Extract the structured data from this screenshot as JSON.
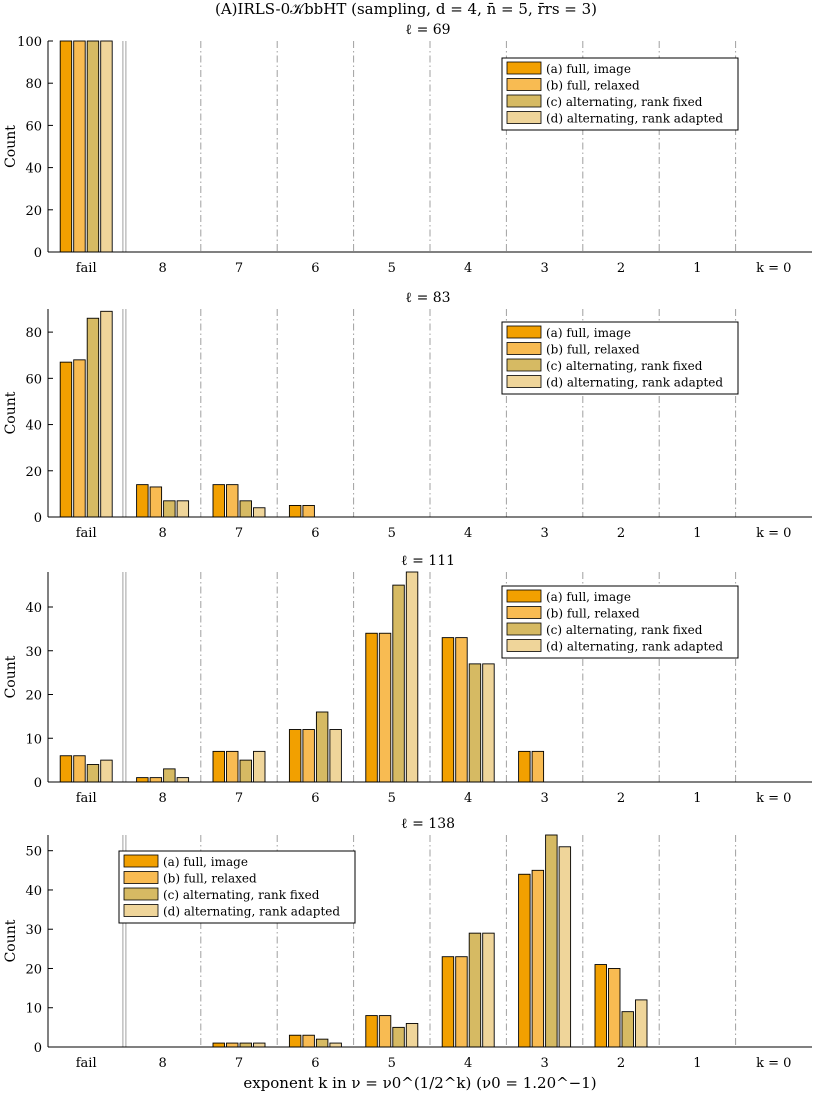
{
  "figure": {
    "title": "(A)IRLS-0𝒦bbHT (sampling, d = 4, n̄ = 5, r̄rs = 3)",
    "xlabel": "exponent k in ν = ν0^(1/2^k) (ν0 = 1.20^−1)"
  },
  "colors": {
    "a": "#F2A000",
    "b": "#F8BB52",
    "c": "#D6BA63",
    "d": "#EFD59A",
    "edge": "#000000",
    "grid": "#A0A0A0"
  },
  "chart_data": [
    {
      "type": "bar",
      "title": "ℓ = 69",
      "ylabel": "Count",
      "categories": [
        "fail",
        "8",
        "7",
        "6",
        "5",
        "4",
        "3",
        "2",
        "1",
        "k = 0"
      ],
      "ylim": [
        0,
        100
      ],
      "yticks": [
        0,
        20,
        40,
        60,
        80,
        100
      ],
      "legend_position": "top-right",
      "series": [
        {
          "name": "(a) full, image",
          "color_key": "a",
          "values": [
            100,
            0,
            0,
            0,
            0,
            0,
            0,
            0,
            0,
            0
          ]
        },
        {
          "name": "(b) full, relaxed",
          "color_key": "b",
          "values": [
            100,
            0,
            0,
            0,
            0,
            0,
            0,
            0,
            0,
            0
          ]
        },
        {
          "name": "(c) alternating, rank fixed",
          "color_key": "c",
          "values": [
            100,
            0,
            0,
            0,
            0,
            0,
            0,
            0,
            0,
            0
          ]
        },
        {
          "name": "(d) alternating, rank adapted",
          "color_key": "d",
          "values": [
            100,
            0,
            0,
            0,
            0,
            0,
            0,
            0,
            0,
            0
          ]
        }
      ]
    },
    {
      "type": "bar",
      "title": "ℓ = 83",
      "ylabel": "Count",
      "categories": [
        "fail",
        "8",
        "7",
        "6",
        "5",
        "4",
        "3",
        "2",
        "1",
        "k = 0"
      ],
      "ylim": [
        0,
        90
      ],
      "yticks": [
        0,
        20,
        40,
        60,
        80
      ],
      "legend_position": "top-right",
      "series": [
        {
          "name": "(a) full, image",
          "color_key": "a",
          "values": [
            67,
            14,
            14,
            5,
            0,
            0,
            0,
            0,
            0,
            0
          ]
        },
        {
          "name": "(b) full, relaxed",
          "color_key": "b",
          "values": [
            68,
            13,
            14,
            5,
            0,
            0,
            0,
            0,
            0,
            0
          ]
        },
        {
          "name": "(c) alternating, rank fixed",
          "color_key": "c",
          "values": [
            86,
            7,
            7,
            0,
            0,
            0,
            0,
            0,
            0,
            0
          ]
        },
        {
          "name": "(d) alternating, rank adapted",
          "color_key": "d",
          "values": [
            89,
            7,
            4,
            0,
            0,
            0,
            0,
            0,
            0,
            0
          ]
        }
      ]
    },
    {
      "type": "bar",
      "title": "ℓ = 111",
      "ylabel": "Count",
      "categories": [
        "fail",
        "8",
        "7",
        "6",
        "5",
        "4",
        "3",
        "2",
        "1",
        "k = 0"
      ],
      "ylim": [
        0,
        48
      ],
      "yticks": [
        0,
        10,
        20,
        30,
        40
      ],
      "legend_position": "top-right",
      "series": [
        {
          "name": "(a) full, image",
          "color_key": "a",
          "values": [
            6,
            1,
            7,
            12,
            34,
            33,
            7,
            0,
            0,
            0
          ]
        },
        {
          "name": "(b) full, relaxed",
          "color_key": "b",
          "values": [
            6,
            1,
            7,
            12,
            34,
            33,
            7,
            0,
            0,
            0
          ]
        },
        {
          "name": "(c) alternating, rank fixed",
          "color_key": "c",
          "values": [
            4,
            3,
            5,
            16,
            45,
            27,
            0,
            0,
            0,
            0
          ]
        },
        {
          "name": "(d) alternating, rank adapted",
          "color_key": "d",
          "values": [
            5,
            1,
            7,
            12,
            48,
            27,
            0,
            0,
            0,
            0
          ]
        }
      ]
    },
    {
      "type": "bar",
      "title": "ℓ = 138",
      "ylabel": "Count",
      "categories": [
        "fail",
        "8",
        "7",
        "6",
        "5",
        "4",
        "3",
        "2",
        "1",
        "k = 0"
      ],
      "ylim": [
        0,
        54
      ],
      "yticks": [
        0,
        10,
        20,
        30,
        40,
        50
      ],
      "legend_position": "top-left",
      "series": [
        {
          "name": "(a) full, image",
          "color_key": "a",
          "values": [
            0,
            0,
            1,
            3,
            8,
            23,
            44,
            21,
            0,
            0
          ]
        },
        {
          "name": "(b) full, relaxed",
          "color_key": "b",
          "values": [
            0,
            0,
            1,
            3,
            8,
            23,
            45,
            20,
            0,
            0
          ]
        },
        {
          "name": "(c) alternating, rank fixed",
          "color_key": "c",
          "values": [
            0,
            0,
            1,
            2,
            5,
            29,
            54,
            9,
            0,
            0
          ]
        },
        {
          "name": "(d) alternating, rank adapted",
          "color_key": "d",
          "values": [
            0,
            0,
            1,
            1,
            6,
            29,
            51,
            12,
            0,
            0
          ]
        }
      ]
    }
  ]
}
